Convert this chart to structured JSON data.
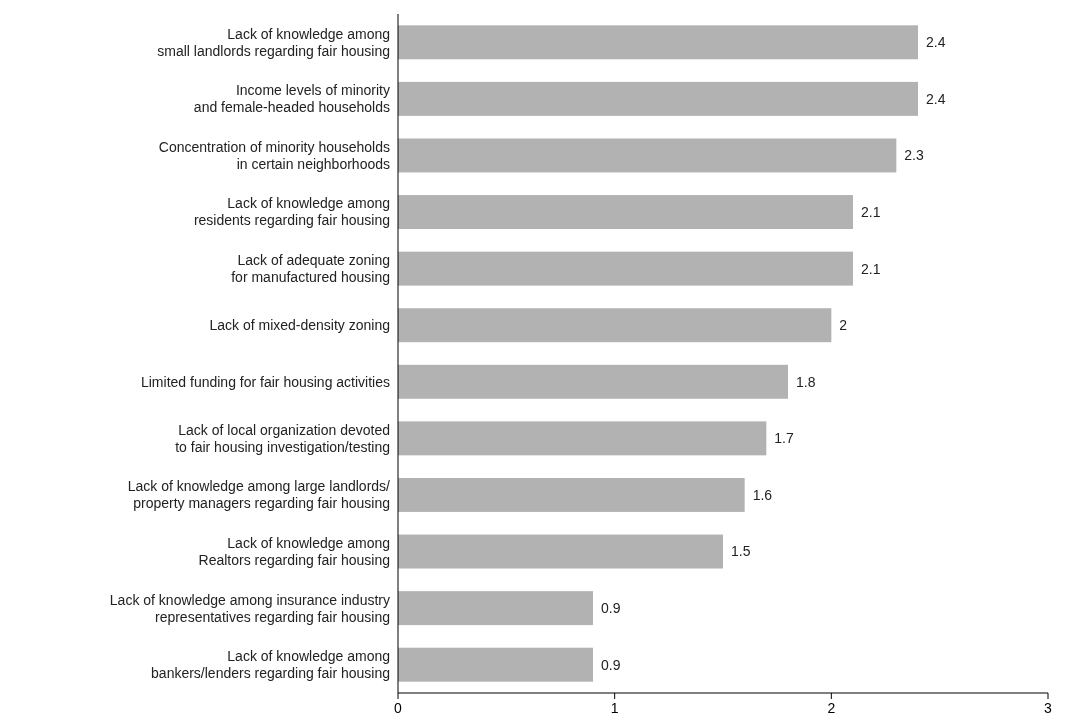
{
  "chart_data": {
    "type": "bar",
    "orientation": "horizontal",
    "categories": [
      "Lack of knowledge among\nsmall landlords regarding fair housing",
      "Income levels of minority\nand female-headed households",
      "Concentration of minority households\nin certain neighborhoods",
      "Lack of knowledge among\nresidents regarding fair housing",
      "Lack of adequate zoning\nfor manufactured housing",
      "Lack of mixed-density zoning",
      "Limited funding for fair housing activities",
      "Lack of local organization devoted\nto fair housing investigation/testing",
      "Lack of knowledge among large landlords/\nproperty managers regarding fair housing",
      "Lack of knowledge among\nRealtors regarding fair housing",
      "Lack of knowledge among insurance industry\nrepresentatives regarding fair housing",
      "Lack of knowledge among\nbankers/lenders regarding fair housing"
    ],
    "values": [
      2.4,
      2.4,
      2.3,
      2.1,
      2.1,
      2,
      1.8,
      1.7,
      1.6,
      1.5,
      0.9,
      0.9
    ],
    "color": "#b2b2b2",
    "xlim": [
      0,
      3
    ],
    "xticks": [
      0,
      1,
      2,
      3
    ],
    "data_labels": true
  }
}
